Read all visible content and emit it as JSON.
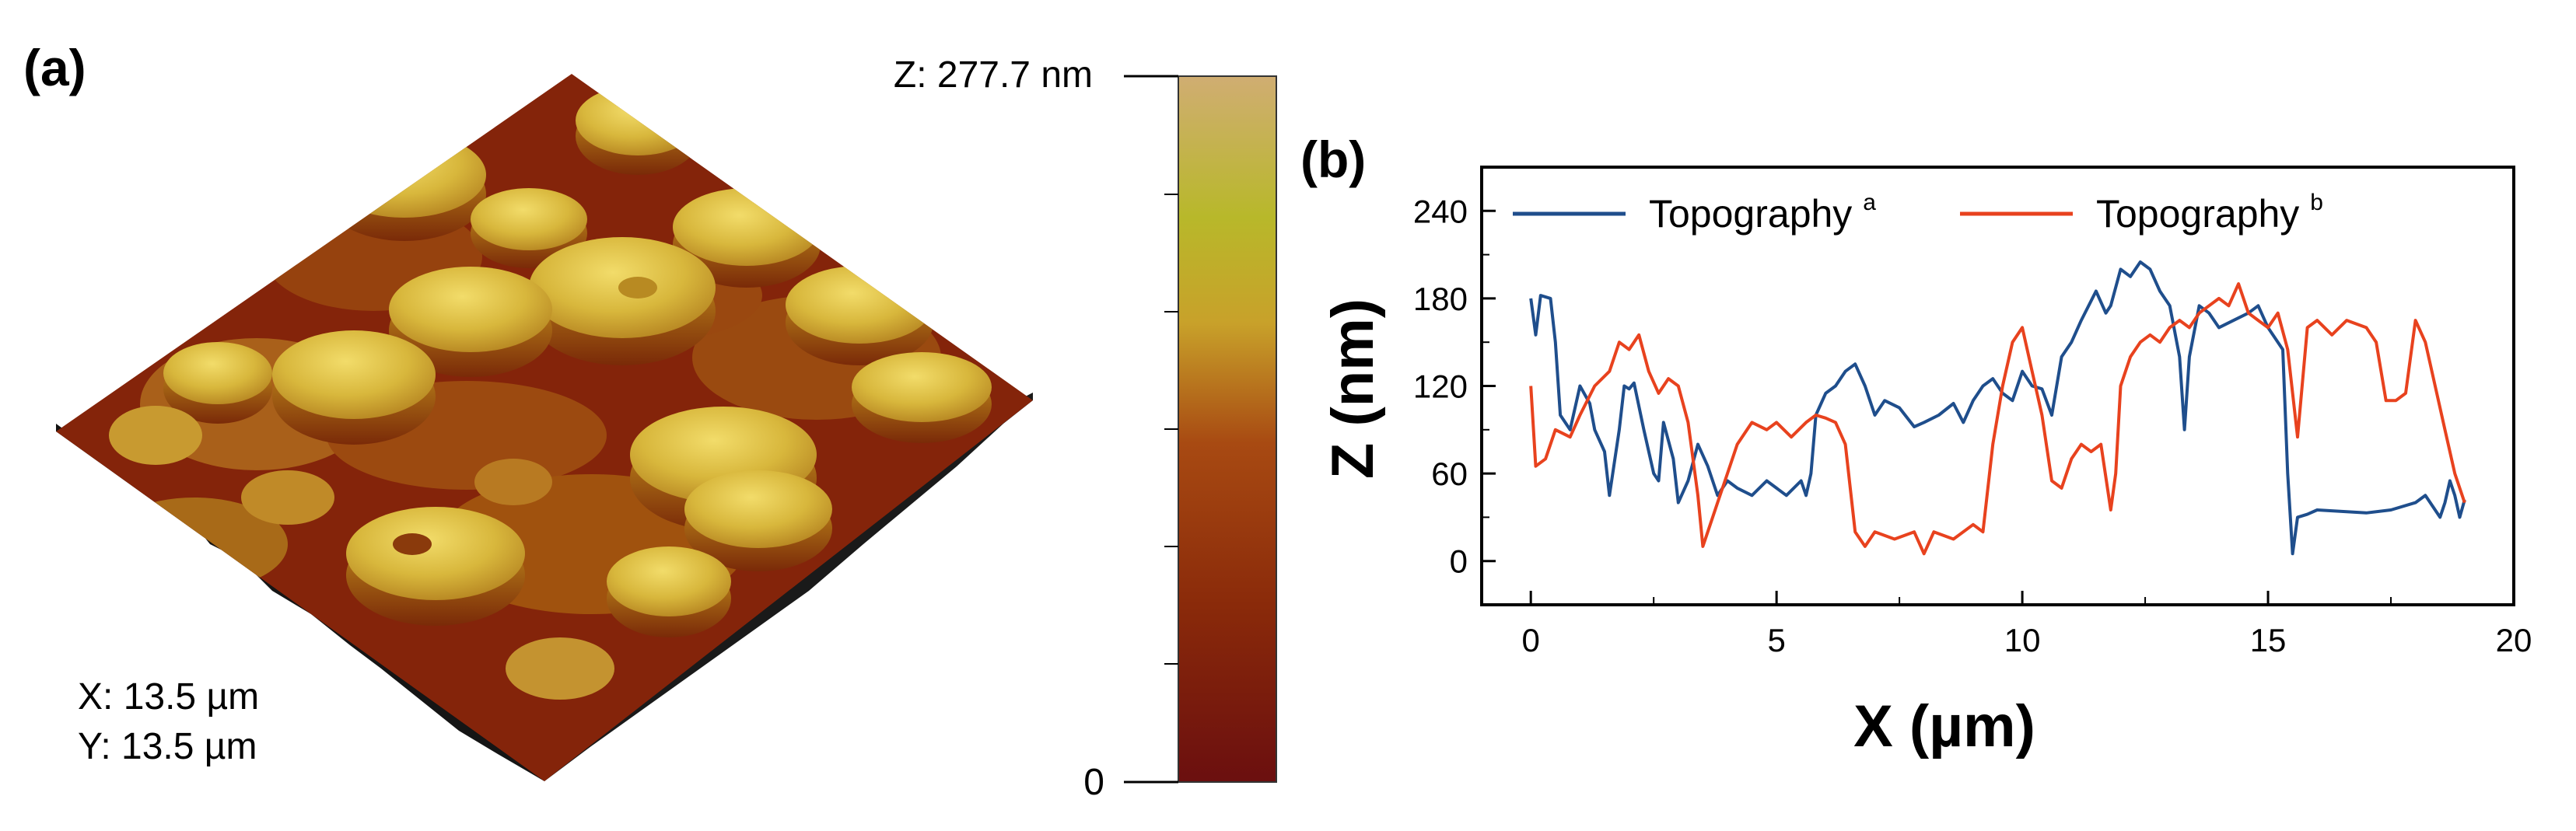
{
  "panel_a": {
    "label": "(a)",
    "x_size": "X: 13.5 µm",
    "y_size": "Y: 13.5 µm",
    "colorbar": {
      "max_label": "Z: 277.7 nm",
      "min_label": "0",
      "z_max_nm": 277.7,
      "colors": [
        "#6b0f0f",
        "#8a2a0a",
        "#a84a12",
        "#c8a12a",
        "#b8b82a",
        "#d0ad72"
      ]
    },
    "surface_colors": {
      "low": "#7a1a08",
      "mid": "#a0520e",
      "high": "#e2c24a",
      "edge": "#111111"
    }
  },
  "chart_data": {
    "type": "line",
    "label": "(b)",
    "xlabel": "X (µm)",
    "ylabel": "Z (nm)",
    "xlim": [
      -1,
      20
    ],
    "ylim": [
      -30,
      270
    ],
    "xticks": [
      0,
      5,
      10,
      15,
      20
    ],
    "yticks": [
      0,
      60,
      120,
      180,
      240
    ],
    "grid": false,
    "legend_position": "top",
    "series": [
      {
        "name": "Topography",
        "superscript": "a",
        "color": "#1f4e8c",
        "x": [
          0,
          0.1,
          0.2,
          0.4,
          0.5,
          0.6,
          0.8,
          1.0,
          1.2,
          1.3,
          1.5,
          1.6,
          1.8,
          1.9,
          2.0,
          2.1,
          2.3,
          2.5,
          2.6,
          2.7,
          2.9,
          3.0,
          3.2,
          3.4,
          3.6,
          3.8,
          4.0,
          4.2,
          4.5,
          4.8,
          5.0,
          5.2,
          5.5,
          5.6,
          5.7,
          5.8,
          6.0,
          6.2,
          6.4,
          6.6,
          6.8,
          7.0,
          7.2,
          7.5,
          7.8,
          8.0,
          8.3,
          8.6,
          8.8,
          9.0,
          9.2,
          9.4,
          9.6,
          9.8,
          10.0,
          10.2,
          10.4,
          10.6,
          10.8,
          11.0,
          11.2,
          11.5,
          11.7,
          11.8,
          12.0,
          12.2,
          12.4,
          12.6,
          12.8,
          13.0,
          13.2,
          13.3,
          13.4,
          13.6,
          13.8,
          14.0,
          14.3,
          14.6,
          14.8,
          15.0,
          15.2,
          15.3,
          15.4,
          15.5,
          15.6,
          15.8,
          16.0,
          16.5,
          17.0,
          17.5,
          18.0,
          18.2,
          18.4,
          18.5,
          18.6,
          18.7,
          18.8,
          18.9,
          19.0
        ],
        "y": [
          180,
          155,
          182,
          180,
          150,
          100,
          90,
          120,
          108,
          90,
          75,
          45,
          90,
          120,
          118,
          122,
          90,
          60,
          55,
          95,
          70,
          40,
          55,
          80,
          65,
          45,
          55,
          50,
          45,
          55,
          50,
          45,
          55,
          45,
          60,
          100,
          115,
          120,
          130,
          135,
          120,
          100,
          110,
          105,
          92,
          95,
          100,
          108,
          95,
          110,
          120,
          125,
          115,
          110,
          130,
          120,
          118,
          100,
          140,
          150,
          165,
          185,
          170,
          175,
          200,
          195,
          205,
          200,
          185,
          175,
          140,
          90,
          140,
          175,
          170,
          160,
          165,
          170,
          175,
          160,
          150,
          145,
          60,
          5,
          30,
          32,
          35,
          34,
          33,
          35,
          40,
          45,
          35,
          30,
          40,
          55,
          45,
          30,
          42
        ]
      },
      {
        "name": "Topography",
        "superscript": "b",
        "color": "#e8421e",
        "x": [
          0,
          0.1,
          0.3,
          0.5,
          0.8,
          1.0,
          1.3,
          1.6,
          1.8,
          2.0,
          2.2,
          2.4,
          2.6,
          2.8,
          3.0,
          3.2,
          3.4,
          3.5,
          3.6,
          3.8,
          4.0,
          4.2,
          4.5,
          4.8,
          5.0,
          5.3,
          5.6,
          5.8,
          6.0,
          6.2,
          6.4,
          6.6,
          6.8,
          7.0,
          7.4,
          7.8,
          8.0,
          8.2,
          8.6,
          9.0,
          9.2,
          9.4,
          9.6,
          9.8,
          10.0,
          10.2,
          10.4,
          10.6,
          10.8,
          11.0,
          11.2,
          11.4,
          11.6,
          11.8,
          11.9,
          12.0,
          12.2,
          12.4,
          12.6,
          12.8,
          13.0,
          13.2,
          13.4,
          13.6,
          13.8,
          14.0,
          14.2,
          14.4,
          14.6,
          14.8,
          15.0,
          15.2,
          15.4,
          15.6,
          15.8,
          16.0,
          16.3,
          16.6,
          17.0,
          17.2,
          17.4,
          17.6,
          17.8,
          18.0,
          18.2,
          18.4,
          18.6,
          18.8,
          19.0
        ],
        "y": [
          120,
          65,
          70,
          90,
          85,
          100,
          120,
          130,
          150,
          145,
          155,
          130,
          115,
          125,
          120,
          95,
          45,
          10,
          20,
          40,
          60,
          80,
          95,
          90,
          95,
          85,
          95,
          100,
          98,
          95,
          80,
          20,
          10,
          20,
          15,
          20,
          5,
          20,
          15,
          25,
          20,
          80,
          120,
          150,
          160,
          130,
          100,
          55,
          50,
          70,
          80,
          75,
          80,
          35,
          60,
          120,
          140,
          150,
          155,
          150,
          160,
          165,
          160,
          170,
          175,
          180,
          175,
          190,
          170,
          165,
          160,
          170,
          145,
          85,
          160,
          165,
          155,
          165,
          160,
          150,
          110,
          110,
          115,
          165,
          150,
          120,
          90,
          60,
          40
        ]
      }
    ]
  }
}
